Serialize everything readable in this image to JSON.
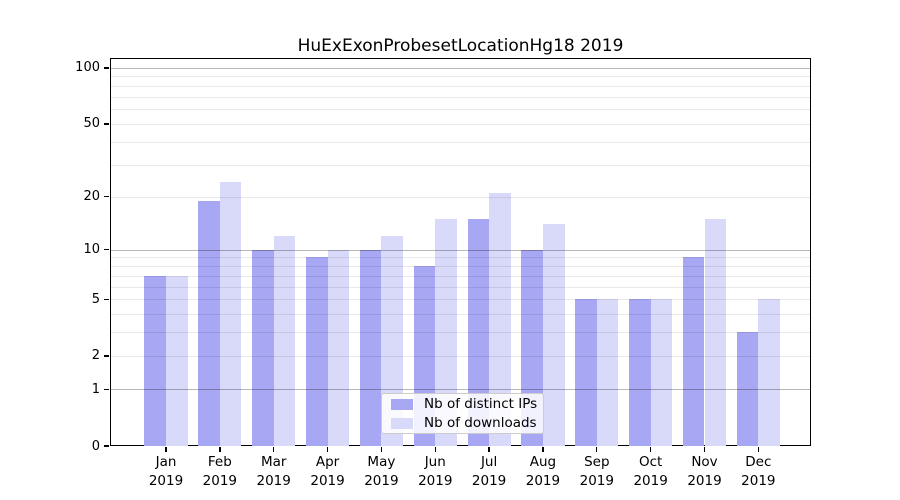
{
  "chart_data": {
    "type": "bar",
    "title": "HuExExonProbesetLocationHg18 2019",
    "year_label": "2019",
    "categories": [
      "Jan",
      "Feb",
      "Mar",
      "Apr",
      "May",
      "Jun",
      "Jul",
      "Aug",
      "Sep",
      "Oct",
      "Nov",
      "Dec"
    ],
    "series": [
      {
        "name": "Nb of distinct IPs",
        "key": "distinct-ips",
        "values": [
          7,
          19,
          10,
          9,
          10,
          8,
          15,
          10,
          5,
          5,
          9,
          3
        ]
      },
      {
        "name": "Nb of downloads",
        "key": "downloads",
        "values": [
          7,
          24,
          12,
          10,
          12,
          15,
          21,
          14,
          5,
          5,
          15,
          5
        ]
      }
    ],
    "y_scale": "log10(1+x)",
    "y_axis_ticks": [
      100,
      50,
      20,
      10,
      5,
      2,
      1,
      0
    ],
    "y_max": 113,
    "grid_major_values": [
      1,
      10,
      100
    ],
    "grid_minor_values": [
      2,
      3,
      4,
      5,
      6,
      7,
      8,
      9,
      20,
      30,
      40,
      50,
      60,
      70,
      80,
      90
    ],
    "grid_on": true,
    "legend_position": "lower-center",
    "colors": {
      "bar_distinct_ips": "#a7a7f3",
      "bar_downloads": "#d9d9f9",
      "grid_major": "rgba(0,0,0,0.28)",
      "grid_minor": "rgba(0,0,0,0.085)",
      "spine": "#000000",
      "text": "#000000",
      "legend_border": "#cccccc"
    }
  }
}
